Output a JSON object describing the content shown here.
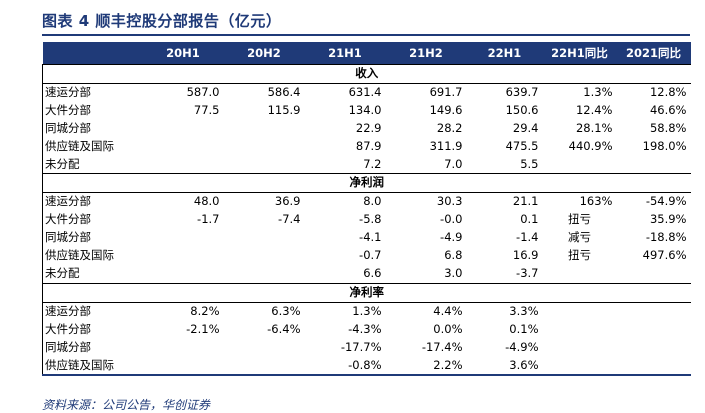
{
  "title": "图表 4   顺丰控股分部报告（亿元）",
  "source": "资料来源：公司公告，华创证券",
  "header": [
    "",
    "20H1",
    "20H2",
    "21H1",
    "21H2",
    "22H1",
    "22H1同比",
    "2021同比"
  ],
  "sections": [
    {
      "name": "收入",
      "rows": [
        {
          "label": "速运分部",
          "cells": [
            "587.0",
            "586.4",
            "631.4",
            "691.7",
            "639.7",
            "1.3%",
            "12.8%"
          ]
        },
        {
          "label": "大件分部",
          "cells": [
            "77.5",
            "115.9",
            "134.0",
            "149.6",
            "150.6",
            "12.4%",
            "46.6%"
          ]
        },
        {
          "label": "同城分部",
          "cells": [
            "",
            "",
            "22.9",
            "28.2",
            "29.4",
            "28.1%",
            "58.8%"
          ]
        },
        {
          "label": "供应链及国际",
          "cells": [
            "",
            "",
            "87.9",
            "311.9",
            "475.5",
            "440.9%",
            "198.0%"
          ]
        },
        {
          "label": "未分配",
          "cells": [
            "",
            "",
            "7.2",
            "7.0",
            "5.5",
            "",
            ""
          ]
        }
      ]
    },
    {
      "name": "净利润",
      "rows": [
        {
          "label": "速运分部",
          "cells": [
            "48.0",
            "36.9",
            "8.0",
            "30.3",
            "21.1",
            "163%",
            "-54.9%"
          ]
        },
        {
          "label": "大件分部",
          "cells": [
            "-1.7",
            "-7.4",
            "-5.8",
            "-0.0",
            "0.1",
            "扭亏",
            "35.9%"
          ]
        },
        {
          "label": "同城分部",
          "cells": [
            "",
            "",
            "-4.1",
            "-4.9",
            "-1.4",
            "减亏",
            "-18.8%"
          ]
        },
        {
          "label": "供应链及国际",
          "cells": [
            "",
            "",
            "-0.7",
            "6.8",
            "16.9",
            "扭亏",
            "497.6%"
          ]
        },
        {
          "label": "未分配",
          "cells": [
            "",
            "",
            "6.6",
            "3.0",
            "-3.7",
            "",
            ""
          ]
        }
      ]
    },
    {
      "name": "净利率",
      "rows": [
        {
          "label": "速运分部",
          "cells": [
            "8.2%",
            "6.3%",
            "1.3%",
            "4.4%",
            "3.3%",
            "",
            ""
          ]
        },
        {
          "label": "大件分部",
          "cells": [
            "-2.1%",
            "-6.4%",
            "-4.3%",
            "0.0%",
            "0.1%",
            "",
            ""
          ]
        },
        {
          "label": "同城分部",
          "cells": [
            "",
            "",
            "-17.7%",
            "-17.4%",
            "-4.9%",
            "",
            ""
          ]
        },
        {
          "label": "供应链及国际",
          "cells": [
            "",
            "",
            "-0.8%",
            "2.2%",
            "3.6%",
            "",
            ""
          ]
        }
      ]
    }
  ]
}
